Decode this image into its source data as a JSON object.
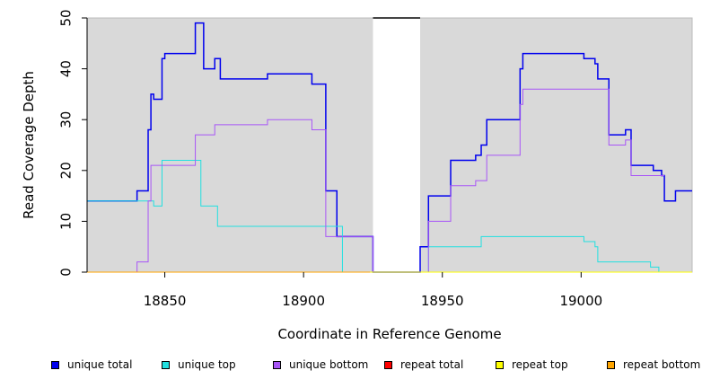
{
  "chart_data": {
    "type": "line",
    "xlabel": "Coordinate in Reference Genome",
    "ylabel": "Read Coverage Depth",
    "xlim": [
      18822,
      19040
    ],
    "ylim": [
      0,
      50
    ],
    "x_ticks": [
      18850,
      18900,
      18950,
      19000
    ],
    "y_ticks": [
      0,
      10,
      20,
      30,
      40,
      50
    ],
    "background": "#d9d9d9",
    "gap_region": [
      18925,
      18942
    ],
    "legend_position": "bottom",
    "series": [
      {
        "name": "unique total",
        "color": "#0000ee",
        "step_points": [
          [
            18822,
            14
          ],
          [
            18840,
            16
          ],
          [
            18844,
            28
          ],
          [
            18845,
            35
          ],
          [
            18846,
            34
          ],
          [
            18849,
            42
          ],
          [
            18850,
            43
          ],
          [
            18861,
            49
          ],
          [
            18864,
            40
          ],
          [
            18868,
            42
          ],
          [
            18870,
            38
          ],
          [
            18887,
            39
          ],
          [
            18903,
            37
          ],
          [
            18908,
            16
          ],
          [
            18912,
            7
          ],
          [
            18924,
            7
          ],
          [
            18925,
            0
          ],
          [
            18942,
            5
          ],
          [
            18945,
            15
          ],
          [
            18953,
            22
          ],
          [
            18962,
            23
          ],
          [
            18964,
            25
          ],
          [
            18966,
            30
          ],
          [
            18978,
            40
          ],
          [
            18979,
            43
          ],
          [
            19001,
            42
          ],
          [
            19005,
            41
          ],
          [
            19006,
            38
          ],
          [
            19010,
            27
          ],
          [
            19016,
            28
          ],
          [
            19018,
            21
          ],
          [
            19026,
            20
          ],
          [
            19029,
            19
          ],
          [
            19030,
            14
          ],
          [
            19034,
            16
          ],
          [
            19040,
            16
          ]
        ]
      },
      {
        "name": "unique top",
        "color": "#22e0e0",
        "step_points": [
          [
            18822,
            14
          ],
          [
            18843,
            14
          ],
          [
            18846,
            13
          ],
          [
            18849,
            22
          ],
          [
            18863,
            13
          ],
          [
            18869,
            9
          ],
          [
            18912,
            9
          ],
          [
            18914,
            0
          ],
          [
            18942,
            0
          ],
          [
            18945,
            5
          ],
          [
            18964,
            7
          ],
          [
            19001,
            6
          ],
          [
            19005,
            5
          ],
          [
            19006,
            2
          ],
          [
            19025,
            1
          ],
          [
            19028,
            0
          ],
          [
            19040,
            0
          ]
        ]
      },
      {
        "name": "unique bottom",
        "color": "#a855f7",
        "step_points": [
          [
            18822,
            0
          ],
          [
            18840,
            2
          ],
          [
            18844,
            14
          ],
          [
            18845,
            21
          ],
          [
            18861,
            27
          ],
          [
            18868,
            29
          ],
          [
            18887,
            30
          ],
          [
            18903,
            28
          ],
          [
            18908,
            7
          ],
          [
            18924,
            7
          ],
          [
            18925,
            0
          ],
          [
            18942,
            0
          ],
          [
            18945,
            10
          ],
          [
            18953,
            17
          ],
          [
            18962,
            18
          ],
          [
            18966,
            23
          ],
          [
            18978,
            33
          ],
          [
            18979,
            36
          ],
          [
            19010,
            25
          ],
          [
            19016,
            26
          ],
          [
            19018,
            19
          ],
          [
            19030,
            19
          ]
        ]
      },
      {
        "name": "repeat total",
        "color": "#ff0000",
        "step_points": [
          [
            18822,
            0
          ],
          [
            19040,
            0
          ]
        ]
      },
      {
        "name": "repeat top",
        "color": "#ffff00",
        "step_points": [
          [
            18822,
            0
          ],
          [
            19040,
            0
          ]
        ]
      },
      {
        "name": "repeat bottom",
        "color": "#ffa500",
        "step_points": [
          [
            18822,
            0
          ],
          [
            18924,
            0
          ]
        ]
      }
    ]
  }
}
